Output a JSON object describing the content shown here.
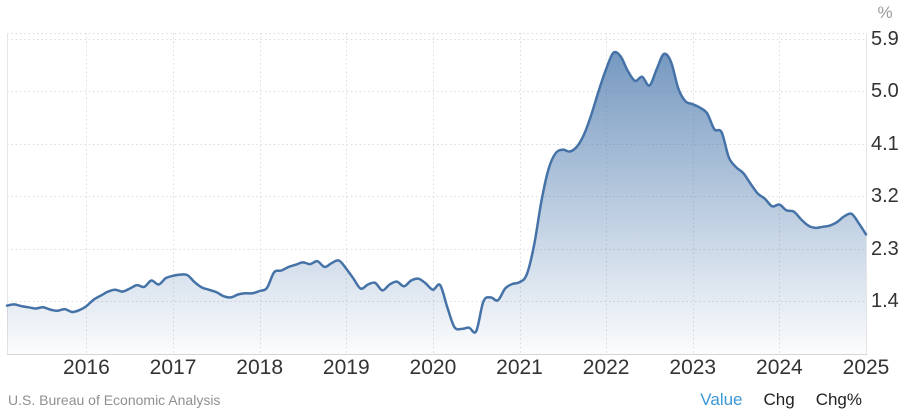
{
  "colors": {
    "line": "#4572a7",
    "fill_top": "rgba(69,116,170,0.78)",
    "fill_bottom": "rgba(69,116,170,0.02)",
    "gridline": "#dcdcdc",
    "plot_border": "#e6e6e6",
    "axis_line": "#d6d6d6",
    "tick_text": "#333333",
    "muted_text": "#909090",
    "active_link": "#3b97d4"
  },
  "y_axis": {
    "unit_label": "%"
  },
  "footer": {
    "source": "U.S. Bureau of Economic Analysis",
    "links": [
      {
        "label": "Value",
        "active": true
      },
      {
        "label": "Chg",
        "active": false
      },
      {
        "label": "Chg%",
        "active": false
      }
    ]
  },
  "chart_data": {
    "type": "area",
    "title": "",
    "xlabel": "",
    "ylabel": "%",
    "legend": "none",
    "grid": "dotted",
    "frequency": "monthly",
    "start": "2015-02",
    "end": "2025-01",
    "ylim": [
      0.5,
      6.0
    ],
    "yticks": [
      1.4,
      2.3,
      3.2,
      4.1,
      5.0,
      5.9
    ],
    "x_years": [
      2016,
      2017,
      2018,
      2019,
      2020,
      2021,
      2022,
      2023,
      2024,
      2025
    ],
    "values": [
      1.33,
      1.35,
      1.32,
      1.3,
      1.28,
      1.3,
      1.26,
      1.24,
      1.27,
      1.22,
      1.25,
      1.32,
      1.43,
      1.5,
      1.57,
      1.6,
      1.57,
      1.62,
      1.68,
      1.65,
      1.76,
      1.69,
      1.8,
      1.84,
      1.86,
      1.85,
      1.73,
      1.64,
      1.6,
      1.56,
      1.49,
      1.47,
      1.52,
      1.54,
      1.54,
      1.58,
      1.63,
      1.9,
      1.93,
      1.99,
      2.03,
      2.07,
      2.04,
      2.09,
      1.99,
      2.06,
      2.1,
      1.96,
      1.79,
      1.62,
      1.69,
      1.72,
      1.59,
      1.69,
      1.74,
      1.66,
      1.76,
      1.79,
      1.71,
      1.6,
      1.68,
      1.3,
      0.96,
      0.93,
      0.95,
      0.89,
      1.4,
      1.47,
      1.42,
      1.62,
      1.7,
      1.73,
      1.86,
      2.35,
      3.1,
      3.66,
      3.94,
      4.0,
      3.97,
      4.06,
      4.28,
      4.62,
      5.02,
      5.38,
      5.66,
      5.6,
      5.35,
      5.18,
      5.25,
      5.1,
      5.38,
      5.64,
      5.5,
      5.05,
      4.83,
      4.78,
      4.72,
      4.62,
      4.35,
      4.3,
      3.87,
      3.7,
      3.6,
      3.42,
      3.25,
      3.16,
      3.03,
      3.06,
      2.96,
      2.94,
      2.81,
      2.7,
      2.66,
      2.68,
      2.7,
      2.76,
      2.86,
      2.9,
      2.74,
      2.55
    ]
  }
}
